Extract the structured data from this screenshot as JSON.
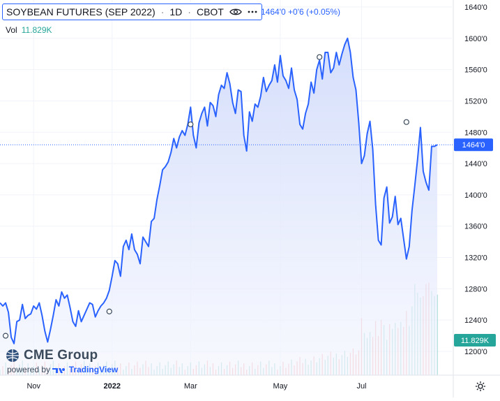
{
  "header": {
    "title": "SOYBEAN FUTURES (SEP 2022)",
    "interval": "1D",
    "exchange": "CBOT",
    "eye_icon": "eye-icon",
    "more_icon": "more-dots-icon",
    "price": "1464'0",
    "change": "+0'6",
    "change_pct": "(+0.05%)"
  },
  "volume": {
    "label": "Vol",
    "value": "11.829K"
  },
  "badges": {
    "price": "1464'0",
    "volume": "11.829K"
  },
  "watermark": {
    "brand": "CME Group",
    "powered_by": "powered by",
    "platform": "TradingView"
  },
  "settings_icon": "settings-gear-icon",
  "colors": {
    "line": "#2962ff",
    "fill_top": "#d2dcfb",
    "volume_up": "#26a69a",
    "volume_down": "#ef5350",
    "price_badge": "#2962ff",
    "volume_badge": "#26a69a"
  },
  "chart_data": {
    "type": "area",
    "price_unit": "cents per bushel (1/8 notation)",
    "y_axis": {
      "range": [
        1176,
        1650
      ],
      "ticks": [
        1640,
        1600,
        1560,
        1520,
        1480,
        1440,
        1400,
        1360,
        1320,
        1280,
        1240,
        1200
      ],
      "tick_labels": [
        "1640'0",
        "1600'0",
        "1560'0",
        "1520'0",
        "1480'0",
        "1440'0",
        "1400'0",
        "1360'0",
        "1320'0",
        "1280'0",
        "1240'0",
        "1200'0"
      ]
    },
    "x_axis": {
      "labels": [
        {
          "text": "Nov",
          "bar": 12
        },
        {
          "text": "2022",
          "bar": 40,
          "bold": true
        },
        {
          "text": "Mar",
          "bar": 68
        },
        {
          "text": "May",
          "bar": 100
        },
        {
          "text": "Jul",
          "bar": 129
        }
      ]
    },
    "current_price": 1464,
    "series": [
      {
        "values": [
          1262,
          1258,
          1262,
          1250,
          1218,
          1210,
          1238,
          1240,
          1260,
          1242,
          1246,
          1248,
          1258,
          1254,
          1262,
          1246,
          1226,
          1212,
          1228,
          1246,
          1266,
          1258,
          1276,
          1268,
          1272,
          1256,
          1238,
          1232,
          1252,
          1238,
          1246,
          1254,
          1262,
          1260,
          1244,
          1252,
          1258,
          1262,
          1268,
          1278,
          1296,
          1316,
          1312,
          1296,
          1334,
          1342,
          1330,
          1350,
          1330,
          1324,
          1312,
          1346,
          1340,
          1334,
          1366,
          1370,
          1394,
          1412,
          1432,
          1436,
          1442,
          1454,
          1472,
          1460,
          1474,
          1482,
          1476,
          1490,
          1512,
          1476,
          1460,
          1492,
          1504,
          1512,
          1488,
          1518,
          1514,
          1500,
          1528,
          1540,
          1536,
          1556,
          1542,
          1518,
          1504,
          1534,
          1532,
          1476,
          1456,
          1506,
          1494,
          1516,
          1512,
          1526,
          1550,
          1532,
          1540,
          1546,
          1566,
          1544,
          1578,
          1552,
          1546,
          1536,
          1562,
          1534,
          1522,
          1490,
          1484,
          1504,
          1516,
          1544,
          1530,
          1560,
          1572,
          1548,
          1582,
          1582,
          1556,
          1562,
          1582,
          1566,
          1580,
          1592,
          1600,
          1582,
          1550,
          1534,
          1492,
          1440,
          1450,
          1478,
          1494,
          1458,
          1388,
          1342,
          1336,
          1396,
          1410,
          1364,
          1372,
          1398,
          1362,
          1370,
          1344,
          1318,
          1334,
          1380,
          1412,
          1446,
          1486,
          1430,
          1416,
          1406,
          1462,
          1462,
          1464
        ],
        "markers": [
          {
            "bar": 2,
            "value": 1220
          },
          {
            "bar": 39,
            "value": 1251
          },
          {
            "bar": 68,
            "value": 1490
          },
          {
            "bar": 114,
            "value": 1576
          },
          {
            "bar": 145,
            "value": 1493
          }
        ]
      }
    ],
    "volume_series": {
      "name": "Vol",
      "scale_max": 104
    }
  }
}
